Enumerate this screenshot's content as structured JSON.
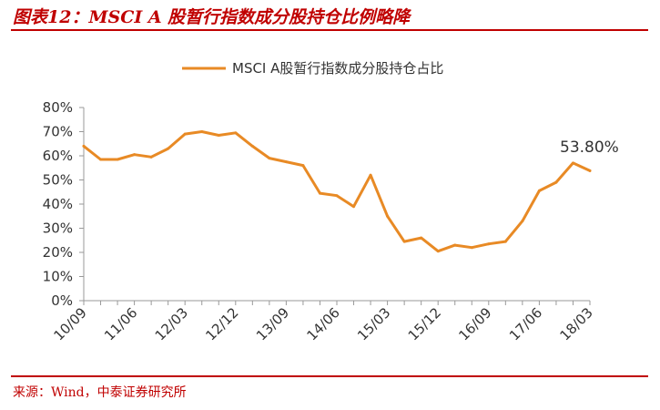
{
  "figure": {
    "title": "图表12：MSCI A 股暂行指数成分股持仓比例略降",
    "source": "来源：Wind，中泰证券研究所"
  },
  "colors": {
    "accent": "#c00000",
    "series": "#e88a25",
    "axis": "#999999"
  },
  "chart_data": {
    "type": "line",
    "title": "",
    "xlabel": "",
    "ylabel": "",
    "ylim": [
      0,
      80
    ],
    "y_ticks": [
      "0%",
      "10%",
      "20%",
      "30%",
      "40%",
      "50%",
      "60%",
      "70%",
      "80%"
    ],
    "x_tick_labels": [
      "10/09",
      "11/06",
      "12/03",
      "12/12",
      "13/09",
      "14/06",
      "15/03",
      "15/12",
      "16/09",
      "17/06",
      "18/03"
    ],
    "grid": false,
    "legend": "top-center",
    "x": [
      "10/09",
      "10/12",
      "11/03",
      "11/06",
      "11/09",
      "11/12",
      "12/03",
      "12/06",
      "12/09",
      "12/12",
      "13/03",
      "13/06",
      "13/09",
      "13/12",
      "14/03",
      "14/06",
      "14/09",
      "14/12",
      "15/03",
      "15/06",
      "15/09",
      "15/12",
      "16/03",
      "16/06",
      "16/09",
      "16/12",
      "17/03",
      "17/06",
      "17/09",
      "17/12",
      "18/03"
    ],
    "series": [
      {
        "name": "MSCI A股暂行指数成分股持仓占比",
        "values": [
          64,
          58.5,
          58.5,
          60.5,
          59.5,
          63,
          69,
          70,
          68.5,
          69.5,
          64,
          59,
          57.5,
          56,
          44.5,
          43.5,
          39,
          52,
          35,
          24.5,
          26,
          20.5,
          23,
          22,
          23.5,
          24.5,
          33,
          45.5,
          49,
          57,
          53.8
        ]
      }
    ],
    "annotations": [
      {
        "text": "53.80%",
        "x": "18/03",
        "y": 53.8
      }
    ]
  }
}
